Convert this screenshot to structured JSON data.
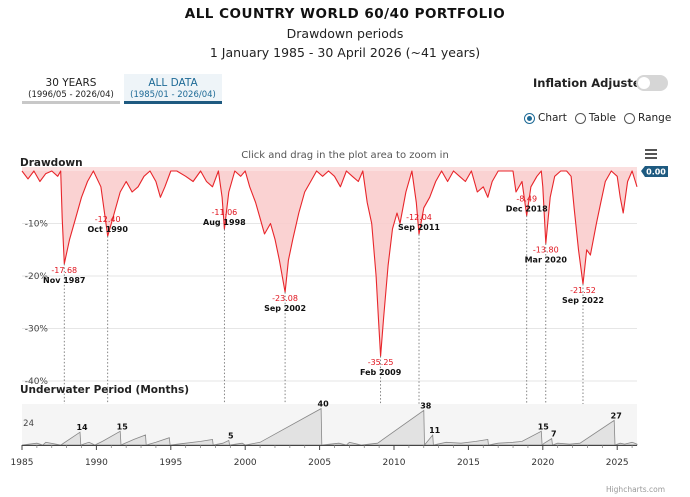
{
  "header": {
    "title": "ALL COUNTRY WORLD 60/40 PORTFOLIO",
    "subtitle": "Drawdown periods",
    "period": "1 January 1985 - 30 April 2026 (~41 years)"
  },
  "tabs": [
    {
      "label": "30 YEARS",
      "range": "(1996/05 - 2026/04)",
      "active": false
    },
    {
      "label": "ALL DATA",
      "range": "(1985/01 - 2026/04)",
      "active": true
    }
  ],
  "controls": {
    "inflation_label": "Inflation Adjusted:",
    "inflation_on": false,
    "view_options": [
      "Chart",
      "Table",
      "Range"
    ],
    "view_selected": "Chart",
    "zoom_hint": "Click and drag in the plot area to zoom in",
    "current_value": "0.00"
  },
  "colors": {
    "drawdown_line": "#e8262b",
    "drawdown_fill": "#f9caca",
    "underwater_fill": "#e2e2e2",
    "accent": "#1e6a96",
    "label_red": "#e0141e"
  },
  "chart_data": [
    {
      "type": "area",
      "title": "Drawdown",
      "ylabel": "",
      "yticks": [
        "-10%",
        "-20%",
        "-30%",
        "-40%"
      ],
      "ylim": [
        -40,
        0
      ],
      "xlim": [
        1985.0,
        2026.33
      ],
      "grid": true,
      "troughs": [
        {
          "value": -17.68,
          "label": "-17.68",
          "date": "Nov 1987",
          "x": 1987.84
        },
        {
          "value": -12.4,
          "label": "-12.40",
          "date": "Oct 1990",
          "x": 1990.76
        },
        {
          "value": -11.06,
          "label": "-11.06",
          "date": "Aug 1998",
          "x": 1998.6
        },
        {
          "value": -23.08,
          "label": "-23.08",
          "date": "Sep 2002",
          "x": 2002.68
        },
        {
          "value": -35.25,
          "label": "-35.25",
          "date": "Feb 2009",
          "x": 2009.1
        },
        {
          "value": -12.04,
          "label": "-12.04",
          "date": "Sep 2011",
          "x": 2011.68
        },
        {
          "value": -8.49,
          "label": "-8.49",
          "date": "Dec 2018",
          "x": 2018.92
        },
        {
          "value": -13.8,
          "label": "-13.80",
          "date": "Mar 2020",
          "x": 2020.2
        },
        {
          "value": -21.52,
          "label": "-21.52",
          "date": "Sep 2022",
          "x": 2022.7
        }
      ],
      "series": [
        {
          "x": [
            1985.0,
            1985.4,
            1985.8,
            1986.2,
            1986.6,
            1987.0,
            1987.4,
            1987.6,
            1987.7,
            1987.84,
            1988.2,
            1988.6,
            1989.0,
            1989.4,
            1989.8,
            1990.3,
            1990.5,
            1990.76,
            1991.2,
            1991.6,
            1992.0,
            1992.4,
            1992.8,
            1993.2,
            1993.6,
            1994.0,
            1994.3,
            1994.6,
            1995.0,
            1995.4,
            1996.0,
            1996.5,
            1997.0,
            1997.4,
            1997.8,
            1998.2,
            1998.45,
            1998.6,
            1998.9,
            1999.3,
            1999.7,
            2000.0,
            2000.3,
            2000.7,
            2001.0,
            2001.3,
            2001.7,
            2002.0,
            2002.3,
            2002.68,
            2002.9,
            2003.2,
            2003.6,
            2004.0,
            2004.4,
            2004.8,
            2005.2,
            2005.6,
            2006.0,
            2006.4,
            2006.8,
            2007.2,
            2007.6,
            2007.9,
            2008.2,
            2008.5,
            2008.8,
            2008.95,
            2009.1,
            2009.3,
            2009.6,
            2009.9,
            2010.2,
            2010.4,
            2010.8,
            2011.2,
            2011.5,
            2011.68,
            2012.0,
            2012.4,
            2012.8,
            2013.2,
            2013.6,
            2014.0,
            2014.4,
            2014.8,
            2015.2,
            2015.6,
            2016.0,
            2016.3,
            2016.6,
            2017.0,
            2017.5,
            2018.0,
            2018.2,
            2018.6,
            2018.92,
            2019.2,
            2019.6,
            2019.9,
            2020.0,
            2020.2,
            2020.5,
            2020.8,
            2021.2,
            2021.6,
            2021.9,
            2022.1,
            2022.4,
            2022.7,
            2022.95,
            2023.2,
            2023.6,
            2023.9,
            2024.2,
            2024.6,
            2025.0,
            2025.2,
            2025.4,
            2025.7,
            2026.0,
            2026.33
          ],
          "y": [
            0,
            -1.5,
            0,
            -2,
            -0.5,
            0,
            -1,
            0,
            -9,
            -17.68,
            -13,
            -9,
            -5,
            -2,
            0,
            -3,
            -7,
            -12.4,
            -8,
            -4,
            -2,
            -4,
            -3,
            -1,
            0,
            -2,
            -5,
            -3,
            0,
            0,
            -1,
            -2,
            0,
            -2,
            -3,
            0,
            -5,
            -11.06,
            -4,
            0,
            -1,
            0,
            -3,
            -6,
            -9,
            -12,
            -10,
            -13,
            -17,
            -23.08,
            -17,
            -13,
            -8,
            -4,
            -2,
            0,
            -1,
            0,
            -1,
            -3,
            0,
            -1,
            -2,
            0,
            -6,
            -10,
            -20,
            -28,
            -35.25,
            -28,
            -18,
            -11,
            -8,
            -10,
            -4,
            0,
            -6,
            -12.04,
            -7,
            -5,
            -2,
            0,
            -2,
            0,
            -1,
            -2,
            0,
            -4,
            -3,
            -5,
            -2,
            0,
            0,
            0,
            -4,
            -2,
            -8.49,
            -3,
            -1,
            0,
            -3,
            -13.8,
            -5,
            -1,
            0,
            0,
            -1,
            -7,
            -15,
            -21.52,
            -15,
            -16,
            -10,
            -6,
            -2,
            0,
            -1,
            -5,
            -8,
            -2,
            0,
            -3
          ]
        }
      ]
    },
    {
      "type": "area",
      "title": "Underwater Period (Months)",
      "ylabel": "",
      "yticks": [
        "24"
      ],
      "ylim": [
        0,
        45
      ],
      "xlim": [
        1985.0,
        2026.33
      ],
      "xticks": [
        "1985",
        "1990",
        "1995",
        "2000",
        "2005",
        "2010",
        "2015",
        "2020",
        "2025"
      ],
      "grid": true,
      "peaks": [
        {
          "value": 14,
          "label": "14",
          "x": 1988.9
        },
        {
          "value": 15,
          "label": "15",
          "x": 1991.6
        },
        {
          "value": 5,
          "label": "5",
          "x": 1998.9
        },
        {
          "value": 40,
          "label": "40",
          "x": 2005.1
        },
        {
          "value": 38,
          "label": "38",
          "x": 2012.0
        },
        {
          "value": 11,
          "label": "11",
          "x": 2012.6
        },
        {
          "value": 15,
          "label": "15",
          "x": 2019.9
        },
        {
          "value": 7,
          "label": "7",
          "x": 2020.6
        },
        {
          "value": 27,
          "label": "27",
          "x": 2024.8
        }
      ],
      "series": [
        {
          "x": [
            1985.0,
            1986.0,
            1986.4,
            1986.6,
            1987.6,
            1987.7,
            1988.9,
            1988.95,
            1989.5,
            1989.9,
            1990.4,
            1991.6,
            1991.65,
            1992.5,
            1993.3,
            1993.35,
            1994.0,
            1994.9,
            1994.95,
            1996.0,
            1997.0,
            1997.8,
            1997.85,
            1998.5,
            1998.9,
            1998.95,
            1999.8,
            2000.0,
            2001.0,
            2005.1,
            2005.15,
            2006.3,
            2006.8,
            2007.0,
            2007.8,
            2008.9,
            2012.0,
            2012.05,
            2012.6,
            2012.65,
            2013.5,
            2014.5,
            2015.5,
            2016.3,
            2016.35,
            2017.0,
            2018.0,
            2018.6,
            2019.9,
            2019.95,
            2020.1,
            2020.6,
            2020.65,
            2021.0,
            2021.8,
            2022.5,
            2024.8,
            2024.85,
            2025.2,
            2025.5,
            2026.0,
            2026.33
          ],
          "y": [
            0,
            2,
            0,
            3,
            0,
            1,
            14,
            0,
            3,
            0,
            4,
            15,
            0,
            6,
            11,
            0,
            3,
            8,
            0,
            2,
            4,
            6,
            0,
            2,
            5,
            0,
            2,
            0,
            3,
            40,
            0,
            2,
            0,
            3,
            0,
            2,
            38,
            0,
            11,
            0,
            3,
            2,
            4,
            6,
            0,
            2,
            3,
            4,
            15,
            0,
            2,
            7,
            0,
            2,
            1,
            2,
            27,
            0,
            2,
            1,
            3,
            1
          ]
        }
      ]
    }
  ]
}
